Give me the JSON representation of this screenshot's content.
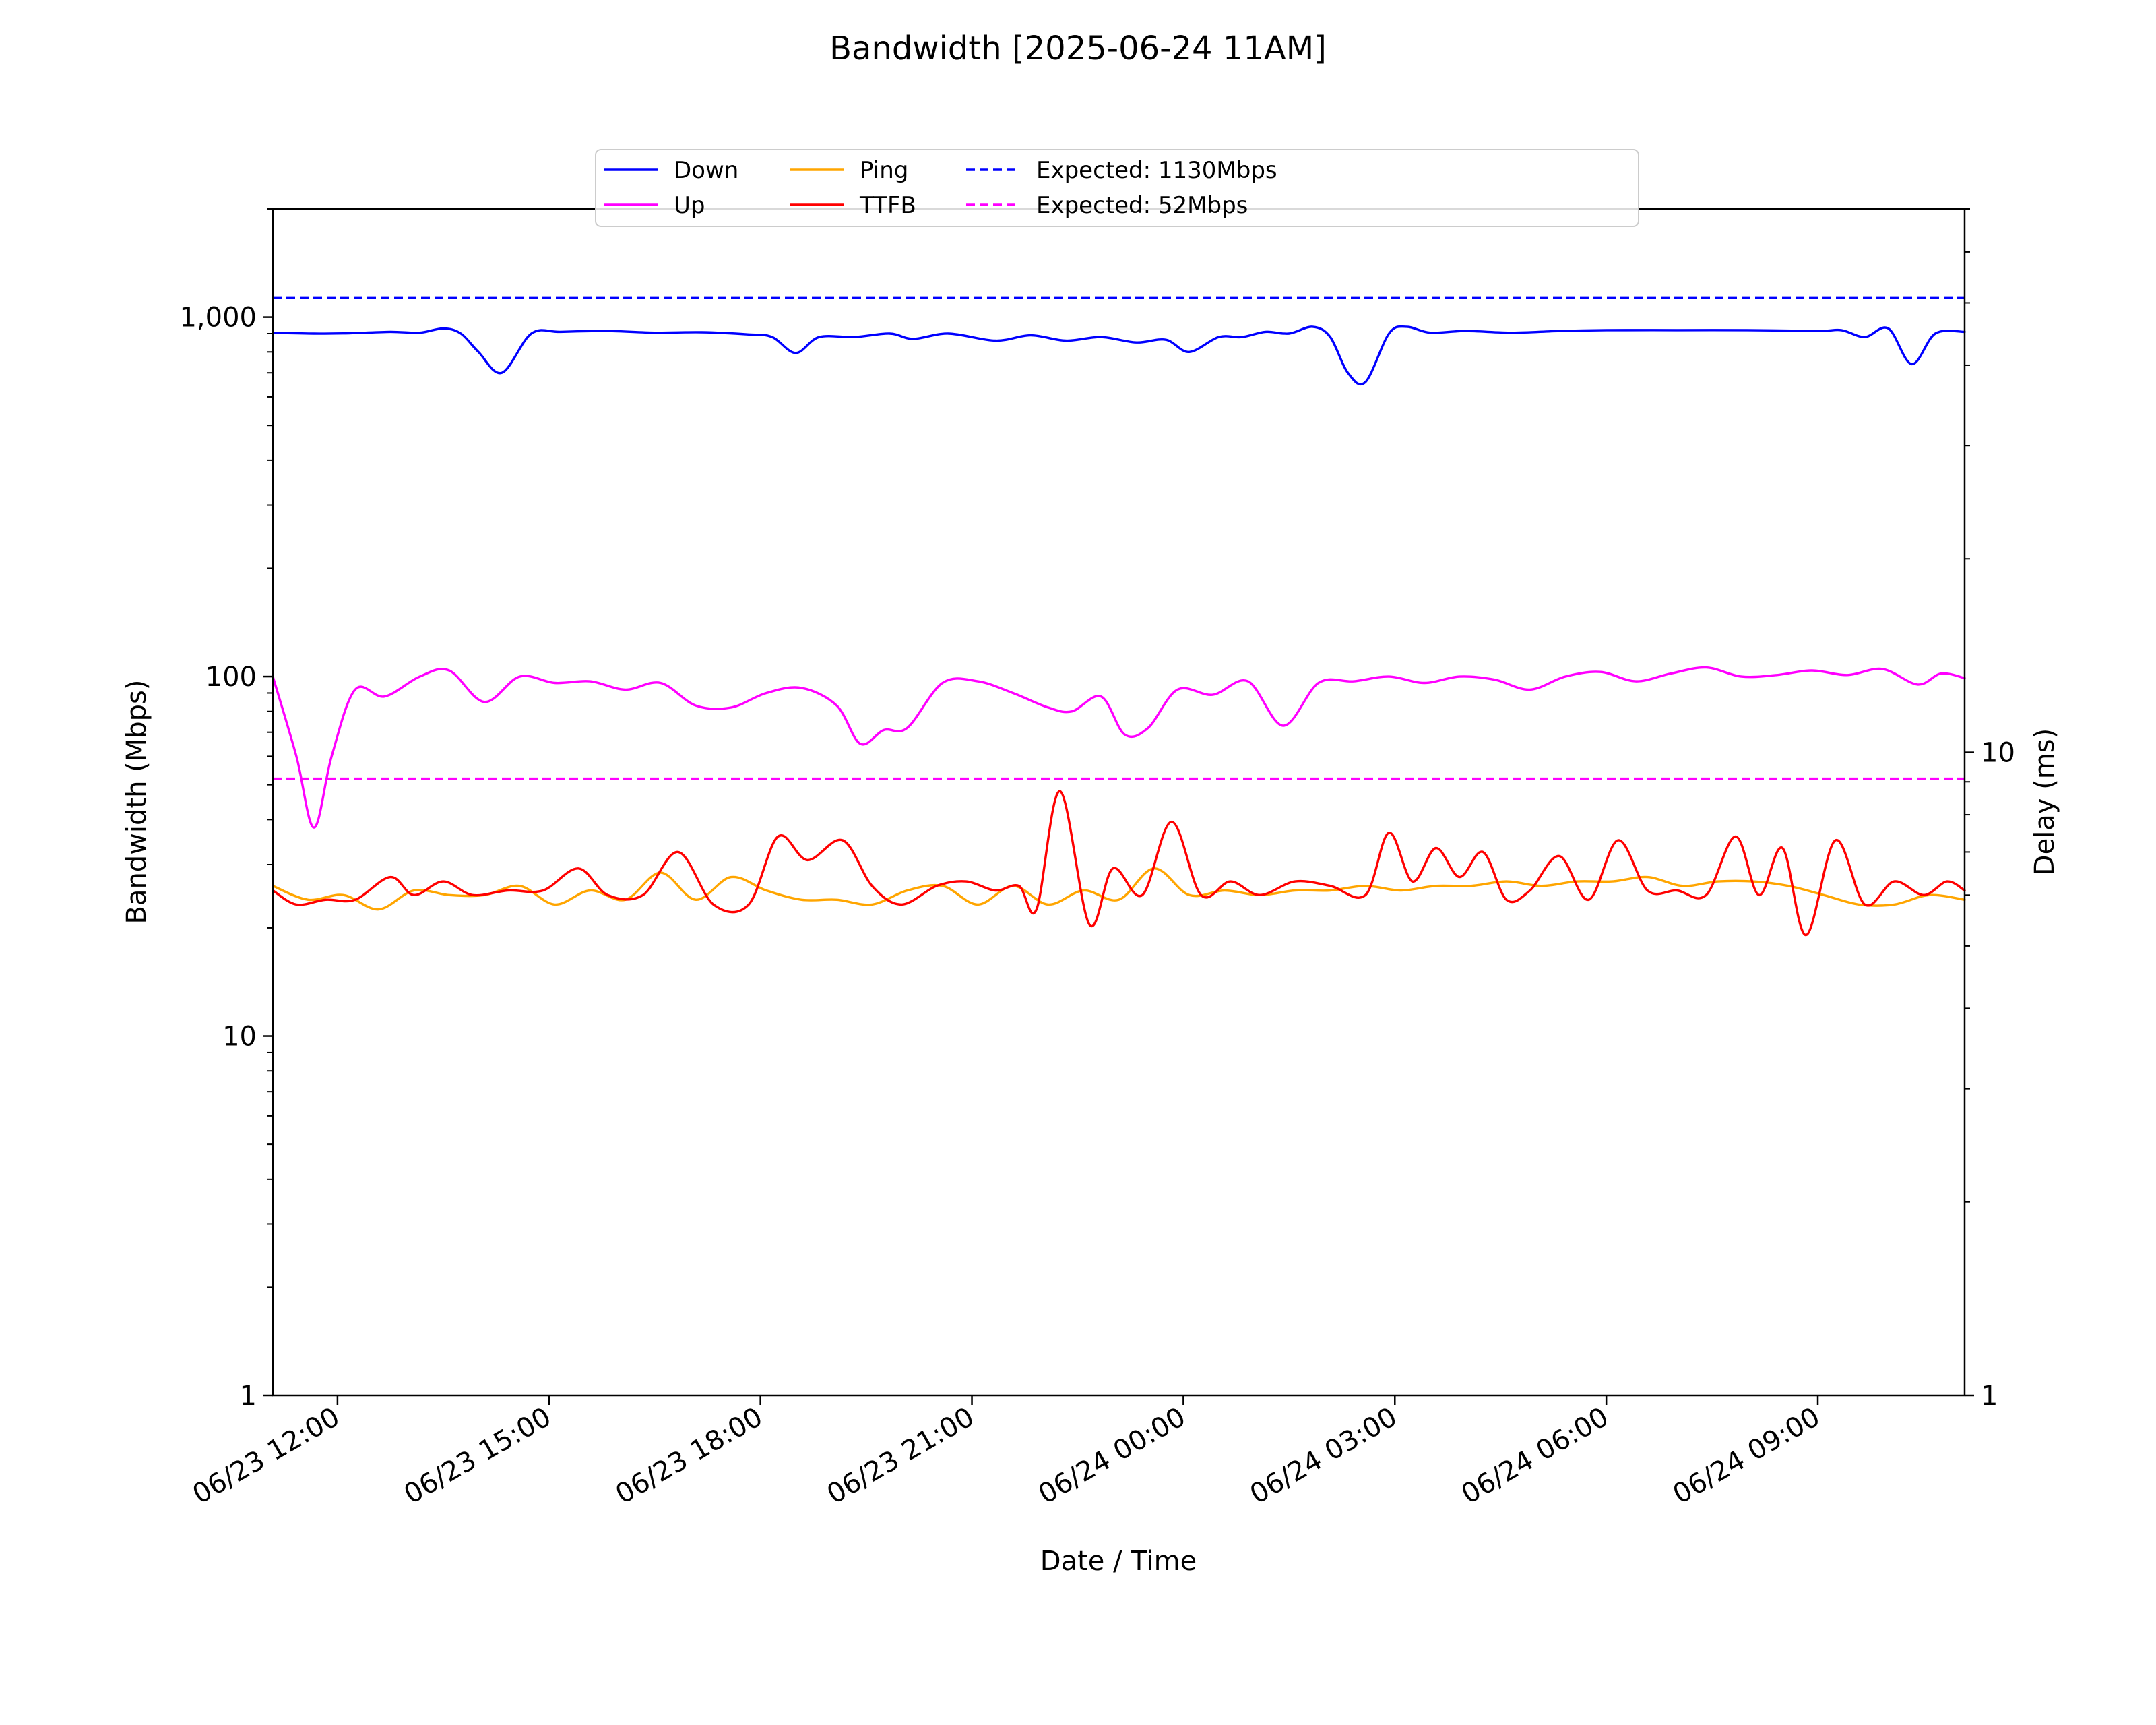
{
  "chart_data": {
    "type": "line",
    "title": "Bandwidth [2025-06-24 11AM]",
    "xlabel": "Date / Time",
    "ylabel": "Bandwidth (Mbps)",
    "y2label": "Delay (ms)",
    "yscale": "log",
    "y2scale": "log",
    "ylim": [
      1,
      2000
    ],
    "y2lim": [
      1,
      70
    ],
    "xlim": [
      "2025-06-23 11:05",
      "2025-06-24 11:05"
    ],
    "grid": false,
    "legend_position": "top-center",
    "x_tick_labels": [
      "06/23 12:00",
      "06/23 15:00",
      "06/23 18:00",
      "06/23 21:00",
      "06/24 00:00",
      "06/24 03:00",
      "06/24 06:00",
      "06/24 09:00"
    ],
    "y_tick_labels": [
      "1",
      "10",
      "100",
      "1,000"
    ],
    "y2_tick_labels": [
      "1",
      "10"
    ],
    "series": [
      {
        "name": "Down",
        "axis": "left",
        "color": "#0000ff",
        "style": "solid",
        "points": [
          [
            "2025-06-23 11:05",
            905
          ],
          [
            "2025-06-23 11:40",
            900
          ],
          [
            "2025-06-23 12:10",
            902
          ],
          [
            "2025-06-23 12:45",
            910
          ],
          [
            "2025-06-23 13:10",
            905
          ],
          [
            "2025-06-23 13:30",
            930
          ],
          [
            "2025-06-23 13:45",
            900
          ],
          [
            "2025-06-23 14:00",
            800
          ],
          [
            "2025-06-23 14:20",
            700
          ],
          [
            "2025-06-23 14:45",
            900
          ],
          [
            "2025-06-23 15:10",
            910
          ],
          [
            "2025-06-23 15:50",
            915
          ],
          [
            "2025-06-23 16:30",
            905
          ],
          [
            "2025-06-23 17:10",
            908
          ],
          [
            "2025-06-23 17:50",
            895
          ],
          [
            "2025-06-23 18:10",
            880
          ],
          [
            "2025-06-23 18:30",
            795
          ],
          [
            "2025-06-23 18:50",
            880
          ],
          [
            "2025-06-23 19:20",
            880
          ],
          [
            "2025-06-23 19:50",
            900
          ],
          [
            "2025-06-23 20:10",
            870
          ],
          [
            "2025-06-23 20:40",
            900
          ],
          [
            "2025-06-23 21:20",
            860
          ],
          [
            "2025-06-23 21:50",
            890
          ],
          [
            "2025-06-23 22:20",
            860
          ],
          [
            "2025-06-23 22:50",
            880
          ],
          [
            "2025-06-23 23:20",
            850
          ],
          [
            "2025-06-23 23:45",
            865
          ],
          [
            "2025-06-24 00:05",
            800
          ],
          [
            "2025-06-24 00:30",
            880
          ],
          [
            "2025-06-24 00:50",
            880
          ],
          [
            "2025-06-24 01:10",
            910
          ],
          [
            "2025-06-24 01:30",
            900
          ],
          [
            "2025-06-24 01:50",
            940
          ],
          [
            "2025-06-24 02:05",
            880
          ],
          [
            "2025-06-24 02:20",
            700
          ],
          [
            "2025-06-24 02:35",
            660
          ],
          [
            "2025-06-24 02:55",
            900
          ],
          [
            "2025-06-24 03:10",
            940
          ],
          [
            "2025-06-24 03:30",
            905
          ],
          [
            "2025-06-24 04:00",
            915
          ],
          [
            "2025-06-24 04:40",
            905
          ],
          [
            "2025-06-24 05:20",
            915
          ],
          [
            "2025-06-24 06:00",
            920
          ],
          [
            "2025-06-24 07:00",
            920
          ],
          [
            "2025-06-24 08:00",
            920
          ],
          [
            "2025-06-24 09:00",
            915
          ],
          [
            "2025-06-24 09:20",
            920
          ],
          [
            "2025-06-24 09:40",
            880
          ],
          [
            "2025-06-24 10:00",
            930
          ],
          [
            "2025-06-24 10:20",
            740
          ],
          [
            "2025-06-24 10:40",
            900
          ],
          [
            "2025-06-24 11:05",
            910
          ]
        ]
      },
      {
        "name": "Up",
        "axis": "left",
        "color": "#ff00ff",
        "style": "solid",
        "points": [
          [
            "2025-06-23 11:05",
            100
          ],
          [
            "2025-06-23 11:25",
            60
          ],
          [
            "2025-06-23 11:40",
            38
          ],
          [
            "2025-06-23 11:55",
            60
          ],
          [
            "2025-06-23 12:15",
            92
          ],
          [
            "2025-06-23 12:40",
            88
          ],
          [
            "2025-06-23 13:10",
            100
          ],
          [
            "2025-06-23 13:35",
            104
          ],
          [
            "2025-06-23 14:05",
            85
          ],
          [
            "2025-06-23 14:35",
            100
          ],
          [
            "2025-06-23 15:05",
            96
          ],
          [
            "2025-06-23 15:35",
            97
          ],
          [
            "2025-06-23 16:05",
            92
          ],
          [
            "2025-06-23 16:35",
            96
          ],
          [
            "2025-06-23 17:05",
            83
          ],
          [
            "2025-06-23 17:35",
            82
          ],
          [
            "2025-06-23 18:05",
            90
          ],
          [
            "2025-06-23 18:35",
            93
          ],
          [
            "2025-06-23 19:05",
            83
          ],
          [
            "2025-06-23 19:25",
            65
          ],
          [
            "2025-06-23 19:45",
            71
          ],
          [
            "2025-06-23 20:05",
            72
          ],
          [
            "2025-06-23 20:35",
            96
          ],
          [
            "2025-06-23 21:05",
            97
          ],
          [
            "2025-06-23 21:35",
            90
          ],
          [
            "2025-06-23 22:05",
            82
          ],
          [
            "2025-06-23 22:25",
            80
          ],
          [
            "2025-06-23 22:50",
            88
          ],
          [
            "2025-06-23 23:10",
            69
          ],
          [
            "2025-06-23 23:30",
            72
          ],
          [
            "2025-06-23 23:55",
            92
          ],
          [
            "2025-06-24 00:25",
            89
          ],
          [
            "2025-06-24 00:55",
            97
          ],
          [
            "2025-06-24 01:25",
            73
          ],
          [
            "2025-06-24 01:55",
            96
          ],
          [
            "2025-06-24 02:25",
            97
          ],
          [
            "2025-06-24 02:55",
            100
          ],
          [
            "2025-06-24 03:25",
            96
          ],
          [
            "2025-06-24 03:55",
            100
          ],
          [
            "2025-06-24 04:25",
            98
          ],
          [
            "2025-06-24 04:55",
            92
          ],
          [
            "2025-06-24 05:25",
            100
          ],
          [
            "2025-06-24 05:55",
            103
          ],
          [
            "2025-06-24 06:25",
            97
          ],
          [
            "2025-06-24 06:55",
            102
          ],
          [
            "2025-06-24 07:25",
            106
          ],
          [
            "2025-06-24 07:55",
            100
          ],
          [
            "2025-06-24 08:25",
            101
          ],
          [
            "2025-06-24 08:55",
            104
          ],
          [
            "2025-06-24 09:25",
            101
          ],
          [
            "2025-06-24 09:55",
            105
          ],
          [
            "2025-06-24 10:25",
            95
          ],
          [
            "2025-06-24 10:45",
            102
          ],
          [
            "2025-06-24 11:05",
            99
          ]
        ]
      },
      {
        "name": "Ping",
        "axis": "right",
        "color": "#ffa500",
        "style": "solid",
        "points": [
          [
            "2025-06-23 11:05",
            6.2
          ],
          [
            "2025-06-23 11:35",
            5.9
          ],
          [
            "2025-06-23 12:05",
            6.0
          ],
          [
            "2025-06-23 12:35",
            5.7
          ],
          [
            "2025-06-23 13:05",
            6.1
          ],
          [
            "2025-06-23 13:35",
            6.0
          ],
          [
            "2025-06-23 14:05",
            6.0
          ],
          [
            "2025-06-23 14:35",
            6.2
          ],
          [
            "2025-06-23 15:05",
            5.8
          ],
          [
            "2025-06-23 15:35",
            6.1
          ],
          [
            "2025-06-23 16:05",
            5.9
          ],
          [
            "2025-06-23 16:35",
            6.5
          ],
          [
            "2025-06-23 17:05",
            5.9
          ],
          [
            "2025-06-23 17:35",
            6.4
          ],
          [
            "2025-06-23 18:05",
            6.1
          ],
          [
            "2025-06-23 18:35",
            5.9
          ],
          [
            "2025-06-23 19:05",
            5.9
          ],
          [
            "2025-06-23 19:35",
            5.8
          ],
          [
            "2025-06-23 20:05",
            6.1
          ],
          [
            "2025-06-23 20:35",
            6.2
          ],
          [
            "2025-06-23 21:05",
            5.8
          ],
          [
            "2025-06-23 21:35",
            6.2
          ],
          [
            "2025-06-23 22:05",
            5.8
          ],
          [
            "2025-06-23 22:35",
            6.1
          ],
          [
            "2025-06-23 23:05",
            5.9
          ],
          [
            "2025-06-23 23:35",
            6.6
          ],
          [
            "2025-06-24 00:05",
            6.0
          ],
          [
            "2025-06-24 00:35",
            6.1
          ],
          [
            "2025-06-24 01:05",
            6.0
          ],
          [
            "2025-06-24 01:35",
            6.1
          ],
          [
            "2025-06-24 02:05",
            6.1
          ],
          [
            "2025-06-24 02:35",
            6.2
          ],
          [
            "2025-06-24 03:05",
            6.1
          ],
          [
            "2025-06-24 03:35",
            6.2
          ],
          [
            "2025-06-24 04:05",
            6.2
          ],
          [
            "2025-06-24 04:35",
            6.3
          ],
          [
            "2025-06-24 05:05",
            6.2
          ],
          [
            "2025-06-24 05:35",
            6.3
          ],
          [
            "2025-06-24 06:05",
            6.3
          ],
          [
            "2025-06-24 06:35",
            6.4
          ],
          [
            "2025-06-24 07:05",
            6.2
          ],
          [
            "2025-06-24 07:35",
            6.3
          ],
          [
            "2025-06-24 08:05",
            6.3
          ],
          [
            "2025-06-24 08:35",
            6.2
          ],
          [
            "2025-06-24 09:05",
            6.0
          ],
          [
            "2025-06-24 09:35",
            5.8
          ],
          [
            "2025-06-24 10:05",
            5.8
          ],
          [
            "2025-06-24 10:35",
            6.0
          ],
          [
            "2025-06-24 11:05",
            5.9
          ]
        ]
      },
      {
        "name": "TTFB",
        "axis": "right",
        "color": "#ff0000",
        "style": "solid",
        "points": [
          [
            "2025-06-23 11:05",
            6.1
          ],
          [
            "2025-06-23 11:25",
            5.8
          ],
          [
            "2025-06-23 11:50",
            5.9
          ],
          [
            "2025-06-23 12:15",
            5.9
          ],
          [
            "2025-06-23 12:45",
            6.4
          ],
          [
            "2025-06-23 13:05",
            6.0
          ],
          [
            "2025-06-23 13:30",
            6.3
          ],
          [
            "2025-06-23 13:55",
            6.0
          ],
          [
            "2025-06-23 14:25",
            6.1
          ],
          [
            "2025-06-23 14:55",
            6.1
          ],
          [
            "2025-06-23 15:25",
            6.6
          ],
          [
            "2025-06-23 15:50",
            6.0
          ],
          [
            "2025-06-23 16:20",
            6.0
          ],
          [
            "2025-06-23 16:50",
            7.0
          ],
          [
            "2025-06-23 17:20",
            5.8
          ],
          [
            "2025-06-23 17:50",
            5.8
          ],
          [
            "2025-06-23 18:15",
            7.4
          ],
          [
            "2025-06-23 18:40",
            6.8
          ],
          [
            "2025-06-23 19:10",
            7.3
          ],
          [
            "2025-06-23 19:35",
            6.2
          ],
          [
            "2025-06-23 20:00",
            5.8
          ],
          [
            "2025-06-23 20:30",
            6.2
          ],
          [
            "2025-06-23 20:55",
            6.3
          ],
          [
            "2025-06-23 21:20",
            6.1
          ],
          [
            "2025-06-23 21:40",
            6.2
          ],
          [
            "2025-06-23 21:55",
            5.7
          ],
          [
            "2025-06-23 22:15",
            8.7
          ],
          [
            "2025-06-23 22:40",
            5.4
          ],
          [
            "2025-06-23 23:00",
            6.6
          ],
          [
            "2025-06-23 23:25",
            6.0
          ],
          [
            "2025-06-23 23:50",
            7.8
          ],
          [
            "2025-06-24 00:15",
            6.0
          ],
          [
            "2025-06-24 00:40",
            6.3
          ],
          [
            "2025-06-24 01:05",
            6.0
          ],
          [
            "2025-06-24 01:35",
            6.3
          ],
          [
            "2025-06-24 02:05",
            6.2
          ],
          [
            "2025-06-24 02:35",
            6.0
          ],
          [
            "2025-06-24 02:55",
            7.5
          ],
          [
            "2025-06-24 03:15",
            6.3
          ],
          [
            "2025-06-24 03:35",
            7.1
          ],
          [
            "2025-06-24 03:55",
            6.4
          ],
          [
            "2025-06-24 04:15",
            7.0
          ],
          [
            "2025-06-24 04:35",
            5.9
          ],
          [
            "2025-06-24 04:55",
            6.1
          ],
          [
            "2025-06-24 05:20",
            6.9
          ],
          [
            "2025-06-24 05:45",
            5.9
          ],
          [
            "2025-06-24 06:10",
            7.3
          ],
          [
            "2025-06-24 06:35",
            6.1
          ],
          [
            "2025-06-24 07:00",
            6.1
          ],
          [
            "2025-06-24 07:25",
            6.0
          ],
          [
            "2025-06-24 07:50",
            7.4
          ],
          [
            "2025-06-24 08:10",
            6.0
          ],
          [
            "2025-06-24 08:30",
            7.1
          ],
          [
            "2025-06-24 08:50",
            5.2
          ],
          [
            "2025-06-24 09:15",
            7.3
          ],
          [
            "2025-06-24 09:40",
            5.8
          ],
          [
            "2025-06-24 10:05",
            6.3
          ],
          [
            "2025-06-24 10:30",
            6.0
          ],
          [
            "2025-06-24 10:50",
            6.3
          ],
          [
            "2025-06-24 11:05",
            6.1
          ]
        ]
      },
      {
        "name": "Expected: 1130Mbps",
        "axis": "left",
        "color": "#0000ff",
        "style": "dashed",
        "constant": 1130
      },
      {
        "name": "Expected: 52Mbps",
        "axis": "left",
        "color": "#ff00ff",
        "style": "dashed",
        "constant": 52
      }
    ]
  }
}
